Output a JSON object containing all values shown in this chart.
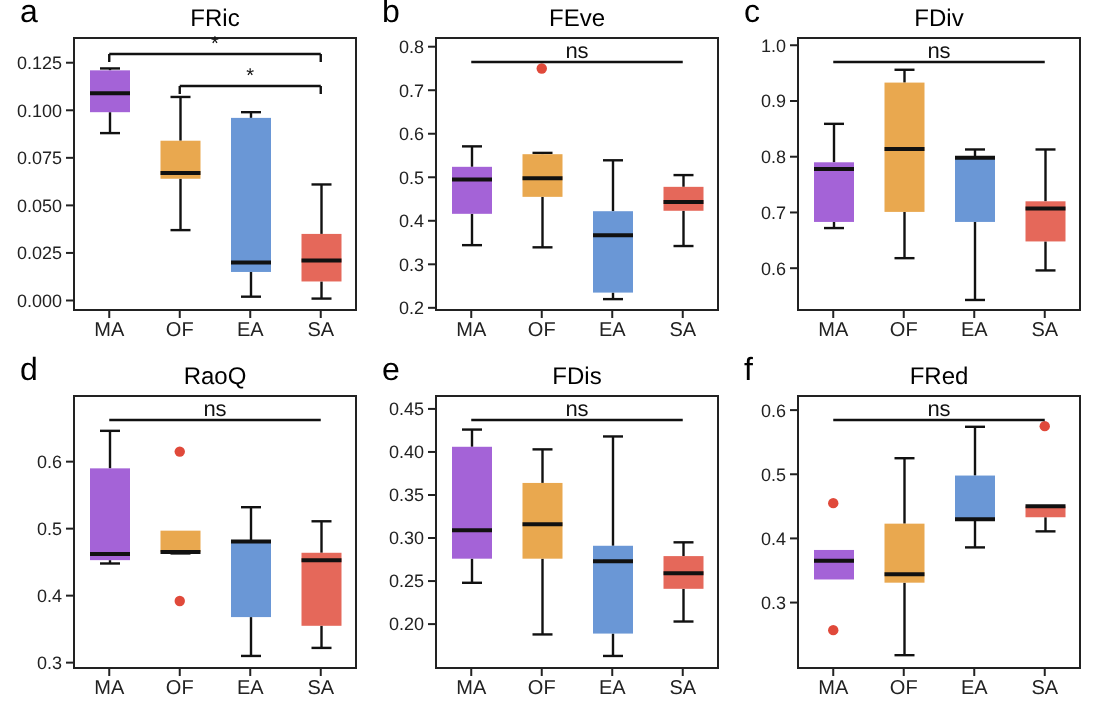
{
  "chart_data": [
    {
      "type": "box",
      "title": "FRic",
      "annotations": [
        "a",
        "*",
        "*"
      ],
      "categories": [
        "MA",
        "OF",
        "EA",
        "SA"
      ],
      "colors": [
        "#a463d7",
        "#e9a84f",
        "#6a97d6",
        "#e5685a"
      ],
      "ylim": [
        -0.005,
        0.138
      ],
      "yticks": [
        {
          "value": 0,
          "label": "0.000"
        },
        0.025,
        {
          "value": 0.05,
          "label": "0.050"
        },
        0.075,
        {
          "value": 0.1,
          "label": "0.100"
        },
        0.125
      ],
      "boxes": [
        {
          "low": 0.088,
          "q1": 0.099,
          "median": 0.109,
          "q3": 0.121,
          "high": 0.122
        },
        {
          "low": 0.037,
          "q1": 0.064,
          "median": 0.067,
          "q3": 0.084,
          "high": 0.107
        },
        {
          "low": 0.002,
          "q1": 0.015,
          "median": 0.02,
          "q3": 0.096,
          "high": 0.099
        },
        {
          "low": 0.001,
          "q1": 0.01,
          "median": 0.021,
          "q3": 0.035,
          "high": 0.061
        }
      ]
    },
    {
      "type": "box",
      "title": "FEve",
      "annotations": [
        "b",
        "ns"
      ],
      "categories": [
        "MA",
        "OF",
        "EA",
        "SA"
      ],
      "colors": [
        "#a463d7",
        "#e9a84f",
        "#6a97d6",
        "#e5685a"
      ],
      "ylim": [
        0.195,
        0.82
      ],
      "yticks": [
        0.2,
        0.3,
        0.4,
        0.5,
        0.6,
        0.7,
        0.8
      ],
      "boxes": [
        {
          "low": 0.344,
          "q1": 0.416,
          "median": 0.495,
          "q3": 0.524,
          "high": 0.571
        },
        {
          "low": 0.339,
          "q1": 0.455,
          "median": 0.498,
          "q3": 0.553,
          "high": 0.556,
          "outliers": [
            0.75
          ]
        },
        {
          "low": 0.22,
          "q1": 0.235,
          "median": 0.367,
          "q3": 0.422,
          "high": 0.539
        },
        {
          "low": 0.342,
          "q1": 0.423,
          "median": 0.443,
          "q3": 0.478,
          "high": 0.505
        }
      ]
    },
    {
      "type": "box",
      "title": "FDiv",
      "annotations": [
        "c",
        "ns"
      ],
      "categories": [
        "MA",
        "OF",
        "EA",
        "SA"
      ],
      "colors": [
        "#a463d7",
        "#e9a84f",
        "#6a97d6",
        "#e5685a"
      ],
      "ylim": [
        0.525,
        1.013
      ],
      "yticks": [
        0.6,
        0.7,
        0.8,
        0.9,
        {
          "value": 1,
          "label": "1.0"
        }
      ],
      "boxes": [
        {
          "low": 0.672,
          "q1": 0.683,
          "median": 0.778,
          "q3": 0.79,
          "high": 0.859
        },
        {
          "low": 0.618,
          "q1": 0.701,
          "median": 0.814,
          "q3": 0.933,
          "high": 0.956
        },
        {
          "low": 0.543,
          "q1": 0.683,
          "median": 0.798,
          "q3": 0.801,
          "high": 0.813
        },
        {
          "low": 0.596,
          "q1": 0.648,
          "median": 0.707,
          "q3": 0.72,
          "high": 0.813
        }
      ]
    },
    {
      "type": "box",
      "title": "RaoQ",
      "annotations": [
        "d",
        "ns"
      ],
      "categories": [
        "MA",
        "OF",
        "EA",
        "SA"
      ],
      "colors": [
        "#a463d7",
        "#e9a84f",
        "#6a97d6",
        "#e5685a"
      ],
      "ylim": [
        0.292,
        0.698
      ],
      "yticks": [
        0.3,
        0.4,
        0.5,
        0.6
      ],
      "boxes": [
        {
          "low": 0.448,
          "q1": 0.453,
          "median": 0.462,
          "q3": 0.59,
          "high": 0.646
        },
        {
          "low": 0.463,
          "q1": 0.465,
          "median": 0.465,
          "q3": 0.497,
          "high": 0.497,
          "outliers": [
            0.615,
            0.392
          ]
        },
        {
          "low": 0.31,
          "q1": 0.368,
          "median": 0.481,
          "q3": 0.481,
          "high": 0.532
        },
        {
          "low": 0.322,
          "q1": 0.355,
          "median": 0.453,
          "q3": 0.464,
          "high": 0.511
        }
      ]
    },
    {
      "type": "box",
      "title": "FDis",
      "annotations": [
        "e",
        "ns"
      ],
      "categories": [
        "MA",
        "OF",
        "EA",
        "SA"
      ],
      "colors": [
        "#a463d7",
        "#e9a84f",
        "#6a97d6",
        "#e5685a"
      ],
      "ylim": [
        0.149,
        0.465
      ],
      "yticks": [
        {
          "value": 0.2,
          "label": "0.20"
        },
        0.25,
        {
          "value": 0.3,
          "label": "0.30"
        },
        0.35,
        {
          "value": 0.4,
          "label": "0.40"
        },
        0.45
      ],
      "boxes": [
        {
          "low": 0.248,
          "q1": 0.276,
          "median": 0.309,
          "q3": 0.406,
          "high": 0.426
        },
        {
          "low": 0.188,
          "q1": 0.276,
          "median": 0.316,
          "q3": 0.364,
          "high": 0.403
        },
        {
          "low": 0.163,
          "q1": 0.189,
          "median": 0.273,
          "q3": 0.291,
          "high": 0.418
        },
        {
          "low": 0.203,
          "q1": 0.241,
          "median": 0.259,
          "q3": 0.279,
          "high": 0.295
        }
      ]
    },
    {
      "type": "box",
      "title": "FRed",
      "annotations": [
        "f",
        "ns"
      ],
      "categories": [
        "MA",
        "OF",
        "EA",
        "SA"
      ],
      "colors": [
        "#a463d7",
        "#e9a84f",
        "#6a97d6",
        "#e5685a"
      ],
      "ylim": [
        0.198,
        0.622
      ],
      "yticks": [
        0.3,
        0.4,
        0.5,
        0.6
      ],
      "boxes": [
        {
          "low": 0.336,
          "q1": 0.336,
          "median": 0.365,
          "q3": 0.382,
          "high": 0.382,
          "outliers": [
            0.455,
            0.257
          ]
        },
        {
          "low": 0.218,
          "q1": 0.331,
          "median": 0.344,
          "q3": 0.423,
          "high": 0.525
        },
        {
          "low": 0.386,
          "q1": 0.43,
          "median": 0.43,
          "q3": 0.498,
          "high": 0.574
        },
        {
          "low": 0.411,
          "q1": 0.433,
          "median": 0.45,
          "q3": 0.45,
          "high": 0.45,
          "outliers": [
            0.575
          ]
        }
      ]
    }
  ]
}
